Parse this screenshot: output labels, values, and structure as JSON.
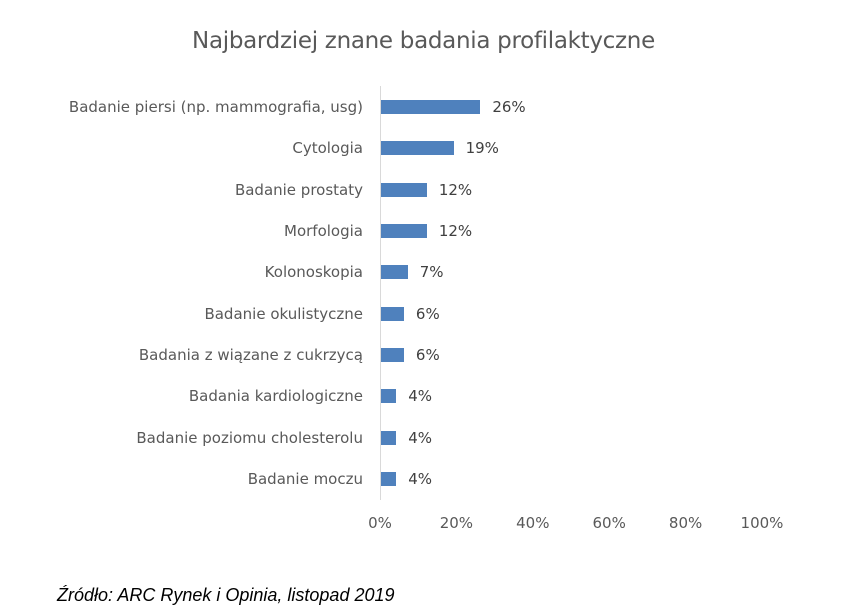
{
  "chart_data": {
    "type": "bar",
    "orientation": "horizontal",
    "title": "Najbardziej znane badania profilaktyczne",
    "categories": [
      "Badanie piersi (np. mammografia, usg)",
      "Cytologia",
      "Badanie prostaty",
      "Morfologia",
      "Kolonoskopia",
      "Badanie okulistyczne",
      "Badania z wiązane z cukrzycą",
      "Badania kardiologiczne",
      "Badanie poziomu cholesterolu",
      "Badanie moczu"
    ],
    "values": [
      26,
      19,
      12,
      12,
      7,
      6,
      6,
      4,
      4,
      4
    ],
    "value_labels": [
      "26%",
      "19%",
      "12%",
      "12%",
      "7%",
      "6%",
      "6%",
      "4%",
      "4%",
      "4%"
    ],
    "xlabel": "",
    "ylabel": "",
    "xlim": [
      0,
      100
    ],
    "x_ticks": [
      "0%",
      "20%",
      "40%",
      "60%",
      "80%",
      "100%"
    ],
    "grid": false,
    "legend": null,
    "bar_color": "#4f81bd"
  },
  "footer": {
    "source": "Źródło: ARC Rynek i Opinia, listopad 2019"
  }
}
